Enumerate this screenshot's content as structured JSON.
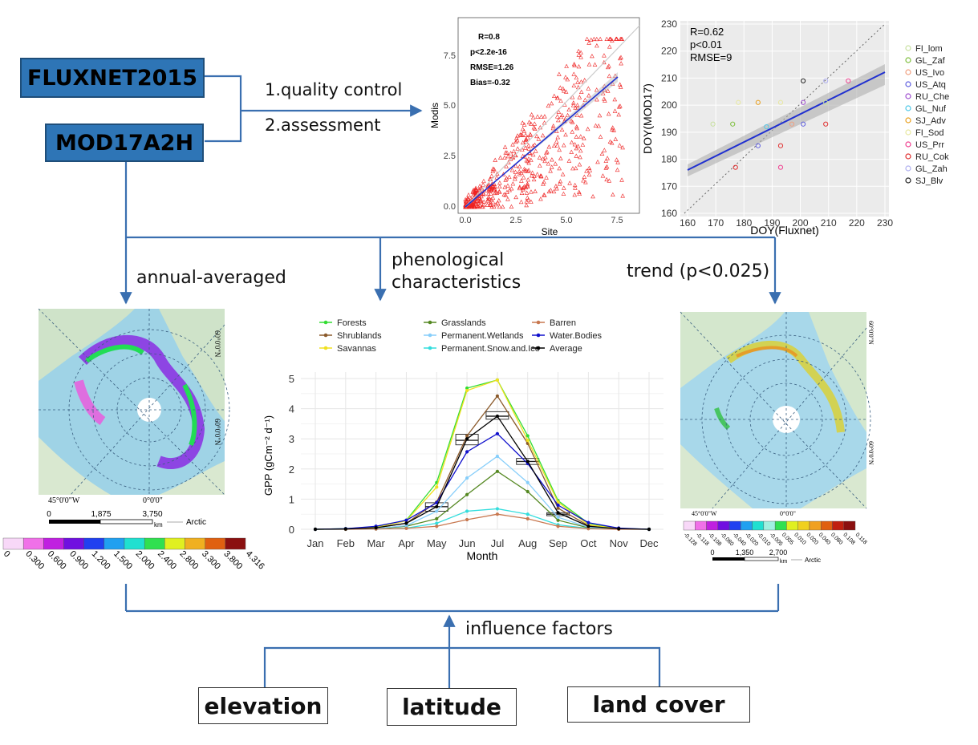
{
  "inputs": {
    "fluxnet": "FLUXNET2015",
    "modis": "MOD17A2H"
  },
  "steps": {
    "s1": "1.quality control",
    "s2": "2.assessment"
  },
  "flow": {
    "annual": "annual-averaged",
    "phen1": "phenological",
    "phen2": "characteristics",
    "trend": "trend (p<0.025)",
    "influence": "influence factors"
  },
  "factors": [
    "elevation",
    "latitude",
    "land cover"
  ],
  "scatter": {
    "xlabel": "Site",
    "ylabel": "Modis",
    "xticks": [
      "0.0",
      "2.5",
      "5.0",
      "7.5"
    ],
    "yticks": [
      "0.0",
      "2.5",
      "5.0",
      "7.5"
    ],
    "stats": [
      "R=0.8",
      "p<2.2e-16",
      "RMSE=1.26",
      "Bias=-0.32"
    ]
  },
  "doy": {
    "xlabel": "DOY(Fluxnet)",
    "ylabel": "DOY(MOD17)",
    "xticks": [
      "160",
      "170",
      "180",
      "190",
      "200",
      "210",
      "220",
      "230"
    ],
    "yticks": [
      "160",
      "170",
      "180",
      "190",
      "200",
      "210",
      "220",
      "230"
    ],
    "stats": [
      "R=0.62",
      "p<0.01",
      "RMSE=9"
    ],
    "legend": [
      {
        "name": "FI_lom",
        "color": "#c8e0a0"
      },
      {
        "name": "GL_Zaf",
        "color": "#7fbf3f"
      },
      {
        "name": "US_Ivo",
        "color": "#f0a080"
      },
      {
        "name": "US_Atq",
        "color": "#6060e0"
      },
      {
        "name": "RU_Che",
        "color": "#a050d0"
      },
      {
        "name": "GL_Nuf",
        "color": "#50c8e8"
      },
      {
        "name": "SJ_Adv",
        "color": "#e8a020"
      },
      {
        "name": "FI_Sod",
        "color": "#e8e8a0"
      },
      {
        "name": "US_Prr",
        "color": "#f04090"
      },
      {
        "name": "RU_Cok",
        "color": "#e03030"
      },
      {
        "name": "GL_Zah",
        "color": "#b0b0f0"
      },
      {
        "name": "SJ_Blv",
        "color": "#222222"
      }
    ]
  },
  "map_left": {
    "lon_label": "45°0'0\"W",
    "zero_label": "0°0'0\"",
    "lat_labels": [
      "60°0'0\"N",
      "60°0'0\"N"
    ],
    "scale": [
      "0",
      "1,875",
      "3,750"
    ],
    "scale_unit": "km",
    "arctic": "Arctic",
    "colorbar_labels": [
      "0",
      "0.300",
      "0.600",
      "0.900",
      "1.200",
      "1.500",
      "2.000",
      "2.400",
      "2.800",
      "3.300",
      "3.800",
      "4.316"
    ],
    "colorbar_colors": [
      "#f8d8f8",
      "#f070e8",
      "#c020e0",
      "#7010e0",
      "#2040f0",
      "#20a0f0",
      "#20e0d0",
      "#30e050",
      "#e0f020",
      "#f0b020",
      "#e06010",
      "#8b1010"
    ]
  },
  "map_right": {
    "lon_label": "45°0'0\"W",
    "zero_label": "0°0'0\"",
    "lat_labels": [
      "60°0'0\"N",
      "60°0'0\"N"
    ],
    "scale": [
      "0",
      "1,350",
      "2,700"
    ],
    "scale_unit": "km",
    "arctic": "Arctic",
    "colorbar_labels": [
      "-0.128",
      "-0.118",
      "-0.108",
      "-0.080",
      "-0.040",
      "-0.020",
      "-0.010",
      "-0.005",
      "0.005",
      "0.010",
      "0.020",
      "0.040",
      "0.080",
      "0.108",
      "0.118"
    ],
    "colorbar_colors": [
      "#f8d8f8",
      "#f070e8",
      "#c020e0",
      "#7010e0",
      "#2040f0",
      "#20a0f0",
      "#20e0d0",
      "#a0f0e0",
      "#30e050",
      "#e0f020",
      "#f0d020",
      "#f0a020",
      "#e06010",
      "#c02010",
      "#8b1010"
    ]
  },
  "chart_data": {
    "type": "line",
    "xlabel": "Month",
    "ylabel": "GPP (gCm⁻² d⁻¹)",
    "categories": [
      "Jan",
      "Feb",
      "Mar",
      "Apr",
      "May",
      "Jun",
      "Jul",
      "Aug",
      "Sep",
      "Oct",
      "Nov",
      "Dec"
    ],
    "ylim": [
      0,
      5
    ],
    "yticks": [
      "0",
      "1",
      "2",
      "3",
      "4",
      "5"
    ],
    "grid": true,
    "legend_position": "top",
    "series": [
      {
        "name": "Forests",
        "color": "#33dd33",
        "values": [
          0,
          0.02,
          0.08,
          0.3,
          1.55,
          4.68,
          4.95,
          3.1,
          0.95,
          0.2,
          0.03,
          0
        ]
      },
      {
        "name": "Shrublands",
        "color": "#8b5a2b",
        "values": [
          0,
          0.01,
          0.05,
          0.2,
          0.9,
          3.1,
          4.42,
          2.85,
          0.7,
          0.12,
          0.02,
          0
        ]
      },
      {
        "name": "Savannas",
        "color": "#f0e020",
        "values": [
          0,
          0.01,
          0.06,
          0.28,
          1.4,
          4.6,
          4.95,
          2.95,
          0.9,
          0.15,
          0.02,
          0
        ]
      },
      {
        "name": "Grasslands",
        "color": "#558822",
        "values": [
          0,
          0.01,
          0.02,
          0.1,
          0.35,
          1.15,
          1.92,
          1.25,
          0.3,
          0.05,
          0.01,
          0
        ]
      },
      {
        "name": "Permanent.Wetlands",
        "color": "#87cefa",
        "values": [
          0,
          0.01,
          0.03,
          0.12,
          0.6,
          1.7,
          2.42,
          1.55,
          0.4,
          0.07,
          0.01,
          0
        ]
      },
      {
        "name": "Permanent.Snow.and.Ice",
        "color": "#33dddd",
        "values": [
          0,
          0,
          0.01,
          0.04,
          0.2,
          0.6,
          0.68,
          0.5,
          0.15,
          0.03,
          0.01,
          0
        ]
      },
      {
        "name": "Barren",
        "color": "#c87850",
        "values": [
          0,
          0,
          0.01,
          0.03,
          0.1,
          0.32,
          0.5,
          0.35,
          0.1,
          0.02,
          0,
          0
        ]
      },
      {
        "name": "Water.Bodies",
        "color": "#1010cc",
        "values": [
          0,
          0.02,
          0.1,
          0.3,
          0.88,
          2.57,
          3.17,
          2.18,
          0.8,
          0.22,
          0.04,
          0
        ]
      },
      {
        "name": "Average",
        "color": "#000000",
        "values": [
          0,
          0.01,
          0.05,
          0.2,
          0.75,
          3.0,
          3.75,
          2.25,
          0.55,
          0.1,
          0.02,
          0
        ]
      }
    ],
    "boxes": [
      {
        "month": "May",
        "q1": 0.6,
        "median": 0.75,
        "q3": 0.88
      },
      {
        "month": "Jun",
        "q1": 2.8,
        "median": 2.95,
        "q3": 3.15
      },
      {
        "month": "Jul",
        "q1": 3.65,
        "median": 3.75,
        "q3": 3.9
      },
      {
        "month": "Aug",
        "q1": 2.15,
        "median": 2.25,
        "q3": 2.35
      },
      {
        "month": "Sep",
        "q1": 0.45,
        "median": 0.5,
        "q3": 0.55
      }
    ]
  }
}
